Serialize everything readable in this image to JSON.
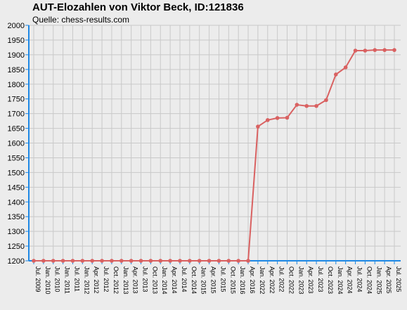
{
  "title": "AUT-Elozahlen von Viktor Beck, ID:121836",
  "subtitle": "Quelle: chess-results.com",
  "colors": {
    "background": "#ececec",
    "grid": "#c9c9c9",
    "axis": "#1e88e5",
    "series": "#d96161"
  },
  "chart_data": {
    "type": "line",
    "title": "AUT-Elozahlen von Viktor Beck, ID:121836",
    "xlabel": "",
    "ylabel": "",
    "ylim": [
      1200,
      2000
    ],
    "yticks": [
      1200,
      1250,
      1300,
      1350,
      1400,
      1450,
      1500,
      1550,
      1600,
      1650,
      1700,
      1750,
      1800,
      1850,
      1900,
      1950,
      2000
    ],
    "grid": true,
    "legend": "none",
    "categories": [
      "Jul. 2009",
      "Jan. 2010",
      "Jul. 2010",
      "Jan. 2011",
      "Jul. 2011",
      "Jan. 2012",
      "Apr. 2012",
      "Jul. 2012",
      "Oct. 2012",
      "Jan. 2013",
      "Apr. 2013",
      "Jul. 2013",
      "Oct. 2013",
      "Jan. 2014",
      "Apr. 2014",
      "Jul. 2014",
      "Oct. 2014",
      "Jan. 2015",
      "Apr. 2015",
      "Jul. 2015",
      "Oct. 2015",
      "Jan. 2016",
      "Apr. 2016",
      "Jan. 2022",
      "Apr. 2022",
      "Jul. 2022",
      "Oct. 2022",
      "Jan. 2023",
      "Apr. 2023",
      "Jul. 2023",
      "Oct. 2023",
      "Jan. 2024",
      "Apr. 2024",
      "Jul. 2024",
      "Oct. 2024",
      "Jan. 2025",
      "Apr. 2025",
      "Jul. 2025"
    ],
    "series": [
      {
        "values": [
          1200,
          1200,
          1200,
          1200,
          1200,
          1200,
          1200,
          1200,
          1200,
          1200,
          1200,
          1200,
          1200,
          1200,
          1200,
          1200,
          1200,
          1200,
          1200,
          1200,
          1200,
          1200,
          1200,
          1656,
          1678,
          1685,
          1686,
          1730,
          1726,
          1726,
          1746,
          1833,
          1857,
          1914,
          1914,
          1916,
          1916,
          1916
        ]
      }
    ]
  }
}
